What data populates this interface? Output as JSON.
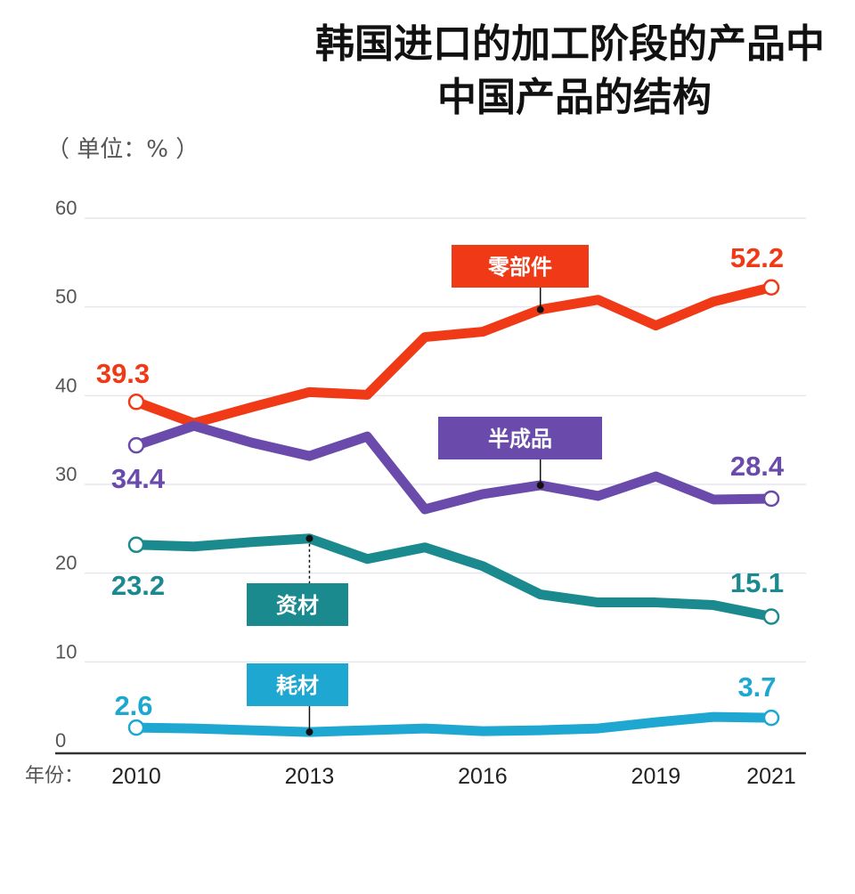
{
  "chart_data": {
    "type": "line",
    "title_lines": [
      "韩国进口的加工阶段的产品中",
      "中国产品的结构"
    ],
    "unit_label": "（ 单位：% ）",
    "xlabel": "年份：",
    "x": [
      2010,
      2011,
      2012,
      2013,
      2014,
      2015,
      2016,
      2017,
      2018,
      2019,
      2020,
      2021
    ],
    "x_tick_labels": [
      "2010",
      "2013",
      "2016",
      "2019",
      "2021"
    ],
    "x_tick_values": [
      2010,
      2013,
      2016,
      2019,
      2021
    ],
    "ylim": [
      0,
      60
    ],
    "y_ticks": [
      0,
      10,
      20,
      30,
      40,
      50,
      60
    ],
    "grid": true,
    "series": [
      {
        "name": "零部件",
        "color": "#f03a17",
        "values": [
          39.3,
          36.9,
          38.7,
          40.4,
          40.1,
          46.6,
          47.2,
          49.7,
          50.8,
          47.9,
          50.6,
          52.2
        ],
        "start_label": "39.3",
        "end_label": "52.2",
        "label_anchor_year": 2017
      },
      {
        "name": "半成品",
        "color": "#6a4aab",
        "values": [
          34.4,
          36.6,
          34.7,
          33.2,
          35.4,
          27.2,
          28.9,
          29.9,
          28.7,
          30.9,
          28.3,
          28.4
        ],
        "start_label": "34.4",
        "end_label": "28.4",
        "label_anchor_year": 2017
      },
      {
        "name": "资材",
        "color": "#1a8a8f",
        "values": [
          23.2,
          23.0,
          23.5,
          23.9,
          21.6,
          22.9,
          20.8,
          17.6,
          16.7,
          16.7,
          16.4,
          15.1
        ],
        "start_label": "23.2",
        "end_label": "15.1",
        "label_anchor_year": 2013
      },
      {
        "name": "耗材",
        "color": "#1ea7d0",
        "values": [
          2.6,
          2.5,
          2.3,
          2.1,
          2.3,
          2.5,
          2.2,
          2.3,
          2.5,
          3.2,
          3.8,
          3.7
        ],
        "start_label": "2.6",
        "end_label": "3.7",
        "label_anchor_year": 2013
      }
    ]
  }
}
